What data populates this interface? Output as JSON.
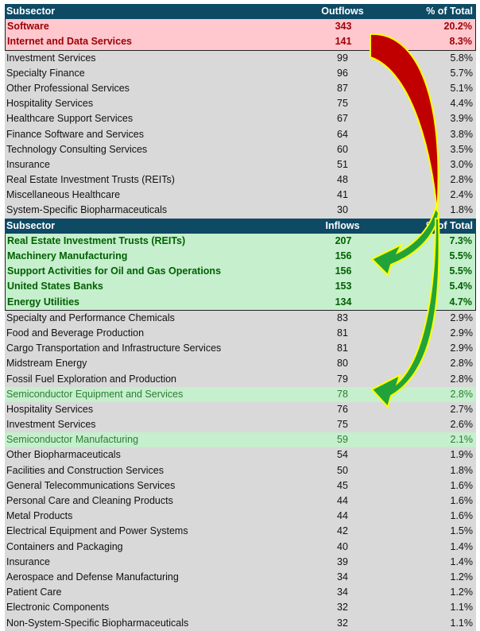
{
  "outflows": {
    "headers": [
      "Subsector",
      "Outflows",
      "% of Total"
    ],
    "rows": [
      {
        "name": "Software",
        "value": "343",
        "pct": "20.2%",
        "highlight": "red"
      },
      {
        "name": "Internet and Data Services",
        "value": "141",
        "pct": "8.3%",
        "highlight": "red"
      },
      {
        "name": "Investment Services",
        "value": "99",
        "pct": "5.8%"
      },
      {
        "name": "Specialty Finance",
        "value": "96",
        "pct": "5.7%"
      },
      {
        "name": "Other Professional Services",
        "value": "87",
        "pct": "5.1%"
      },
      {
        "name": "Hospitality Services",
        "value": "75",
        "pct": "4.4%"
      },
      {
        "name": "Healthcare Support Services",
        "value": "67",
        "pct": "3.9%"
      },
      {
        "name": "Finance Software and Services",
        "value": "64",
        "pct": "3.8%"
      },
      {
        "name": "Technology Consulting Services",
        "value": "60",
        "pct": "3.5%"
      },
      {
        "name": "Insurance",
        "value": "51",
        "pct": "3.0%"
      },
      {
        "name": "Real Estate Investment Trusts (REITs)",
        "value": "48",
        "pct": "2.8%"
      },
      {
        "name": "Miscellaneous Healthcare",
        "value": "41",
        "pct": "2.4%"
      },
      {
        "name": "System-Specific Biopharmaceuticals",
        "value": "30",
        "pct": "1.8%"
      }
    ]
  },
  "inflows": {
    "headers": [
      "Subsector",
      "Inflows",
      "% of Total"
    ],
    "rows": [
      {
        "name": "Real Estate Investment Trusts (REITs)",
        "value": "207",
        "pct": "7.3%",
        "highlight": "green"
      },
      {
        "name": "Machinery Manufacturing",
        "value": "156",
        "pct": "5.5%",
        "highlight": "green"
      },
      {
        "name": "Support Activities for Oil and Gas Operations",
        "value": "156",
        "pct": "5.5%",
        "highlight": "green"
      },
      {
        "name": "United States Banks",
        "value": "153",
        "pct": "5.4%",
        "highlight": "green"
      },
      {
        "name": "Energy Utilities",
        "value": "134",
        "pct": "4.7%",
        "highlight": "green"
      },
      {
        "name": "Specialty and Performance Chemicals",
        "value": "83",
        "pct": "2.9%"
      },
      {
        "name": "Food and Beverage Production",
        "value": "81",
        "pct": "2.9%"
      },
      {
        "name": "Cargo Transportation and Infrastructure Services",
        "value": "81",
        "pct": "2.9%"
      },
      {
        "name": "Midstream Energy",
        "value": "80",
        "pct": "2.8%"
      },
      {
        "name": "Fossil Fuel Exploration and Production",
        "value": "79",
        "pct": "2.8%"
      },
      {
        "name": "Semiconductor Equipment and Services",
        "value": "78",
        "pct": "2.8%",
        "highlight": "lightgreen"
      },
      {
        "name": "Hospitality Services",
        "value": "76",
        "pct": "2.7%"
      },
      {
        "name": "Investment Services",
        "value": "75",
        "pct": "2.6%"
      },
      {
        "name": "Semiconductor Manufacturing",
        "value": "59",
        "pct": "2.1%",
        "highlight": "lightgreen"
      },
      {
        "name": "Other Biopharmaceuticals",
        "value": "54",
        "pct": "1.9%"
      },
      {
        "name": "Facilities and Construction Services",
        "value": "50",
        "pct": "1.8%"
      },
      {
        "name": "General Telecommunications Services",
        "value": "45",
        "pct": "1.6%"
      },
      {
        "name": "Personal Care and Cleaning Products",
        "value": "44",
        "pct": "1.6%"
      },
      {
        "name": "Metal Products",
        "value": "44",
        "pct": "1.6%"
      },
      {
        "name": "Electrical Equipment and Power Systems",
        "value": "42",
        "pct": "1.5%"
      },
      {
        "name": "Containers and Packaging",
        "value": "40",
        "pct": "1.4%"
      },
      {
        "name": "Insurance",
        "value": "39",
        "pct": "1.4%"
      },
      {
        "name": "Aerospace and Defense Manufacturing",
        "value": "34",
        "pct": "1.2%"
      },
      {
        "name": "Patient Care",
        "value": "34",
        "pct": "1.2%"
      },
      {
        "name": "Electronic Components",
        "value": "32",
        "pct": "1.1%"
      },
      {
        "name": "Non-System-Specific Biopharmaceuticals",
        "value": "32",
        "pct": "1.1%"
      }
    ]
  },
  "colors": {
    "header": "#0e4a64",
    "outflow_highlight": "#ffc7ce",
    "outflow_text": "#9c0006",
    "inflow_highlight": "#c6efce",
    "inflow_text": "#006100",
    "arrow_red": "#c00000",
    "arrow_green": "#22a33a",
    "arrow_outline": "#ffff00"
  }
}
